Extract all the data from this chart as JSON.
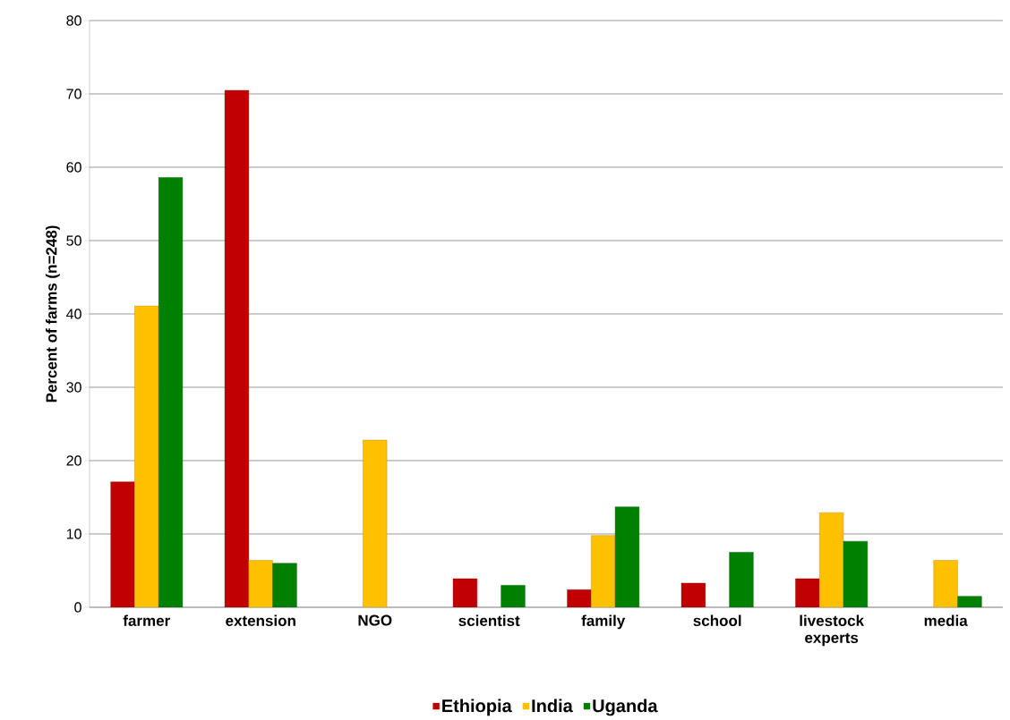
{
  "chart_data": {
    "type": "bar",
    "ylabel": "Percent of farms (n=248)",
    "categories": [
      "farmer",
      "extension",
      "NGO",
      "scientist",
      "family",
      "school",
      "livestock experts",
      "media"
    ],
    "series": [
      {
        "name": "Ethiopia",
        "color": "#c00000",
        "values": [
          17.1,
          70.5,
          null,
          3.9,
          2.4,
          3.3,
          3.9,
          null
        ]
      },
      {
        "name": "India",
        "color": "#ffc000",
        "values": [
          41.1,
          6.4,
          22.8,
          null,
          9.8,
          null,
          12.9,
          6.4
        ]
      },
      {
        "name": "Uganda",
        "color": "#008000",
        "values": [
          58.6,
          6.0,
          null,
          3.0,
          13.7,
          7.5,
          9.0,
          1.5
        ]
      }
    ],
    "ylim": [
      0,
      80
    ],
    "yticks": [
      0,
      10,
      20,
      30,
      40,
      50,
      60,
      70,
      80
    ],
    "grid": "y",
    "legend": "bottom"
  }
}
